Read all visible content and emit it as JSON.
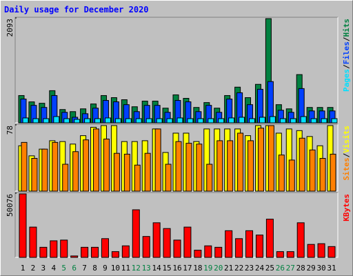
{
  "title": "Daily usage for December 2020",
  "chart_data": [
    {
      "type": "bar",
      "ylim": [
        0,
        2093
      ],
      "yticks": [
        2093
      ],
      "legend_separator": "/",
      "series": [
        {
          "name": "Hits",
          "color": "#008040",
          "values": [
            548,
            421,
            393,
            646,
            267,
            225,
            281,
            379,
            548,
            506,
            464,
            323,
            436,
            436,
            295,
            562,
            492,
            309,
            407,
            295,
            548,
            717,
            506,
            773,
            2093,
            365,
            281,
            969,
            309,
            309,
            309
          ]
        },
        {
          "name": "Files",
          "color": "#0040ff",
          "values": [
            478,
            351,
            309,
            548,
            211,
            112,
            183,
            295,
            450,
            422,
            365,
            225,
            351,
            351,
            211,
            450,
            422,
            225,
            351,
            211,
            478,
            604,
            365,
            674,
            829,
            253,
            211,
            688,
            239,
            239,
            239
          ]
        },
        {
          "name": "Pages",
          "color": "#00e0ff",
          "values": [
            98,
            84,
            84,
            126,
            84,
            70,
            84,
            84,
            98,
            84,
            84,
            84,
            84,
            84,
            84,
            98,
            84,
            84,
            84,
            84,
            98,
            112,
            84,
            112,
            126,
            84,
            84,
            126,
            84,
            84,
            84
          ]
        }
      ]
    },
    {
      "type": "bar",
      "ylim": [
        0,
        78
      ],
      "yticks": [
        78
      ],
      "legend_separator": "/",
      "series": [
        {
          "name": "Visits",
          "color": "#ffff00",
          "values": [
            54,
            42,
            50,
            60,
            59,
            56,
            66,
            76,
            78,
            78,
            59,
            59,
            60,
            74,
            46,
            69,
            69,
            59,
            74,
            74,
            74,
            74,
            66,
            78,
            78,
            69,
            74,
            72,
            65,
            54,
            78
          ]
        },
        {
          "name": "Sites",
          "color": "#ff8000",
          "values": [
            58,
            39,
            50,
            58,
            32,
            47,
            61,
            74,
            62,
            45,
            44,
            31,
            45,
            74,
            32,
            59,
            57,
            56,
            32,
            60,
            60,
            69,
            60,
            75,
            78,
            43,
            37,
            63,
            49,
            39,
            44
          ]
        }
      ]
    },
    {
      "type": "bar",
      "ylim": [
        0,
        50076
      ],
      "yticks": [
        50076
      ],
      "categories": [
        "1",
        "2",
        "3",
        "4",
        "5",
        "6",
        "7",
        "8",
        "9",
        "10",
        "11",
        "12",
        "13",
        "14",
        "15",
        "16",
        "17",
        "18",
        "19",
        "20",
        "21",
        "22",
        "23",
        "24",
        "25",
        "26",
        "27",
        "28",
        "29",
        "30",
        "31"
      ],
      "weekend_days": [
        "5",
        "6",
        "12",
        "13",
        "19",
        "20",
        "26",
        "27"
      ],
      "weekend_color": "#008040",
      "series": [
        {
          "name": "KBytes",
          "color": "#ff0000",
          "values": [
            50076,
            23900,
            7966,
            13088,
            13657,
            1138,
            7966,
            7966,
            14795,
            4552,
            9105,
            37557,
            16502,
            27314,
            22762,
            13657,
            23900,
            5690,
            9105,
            7966,
            21054,
            14795,
            21054,
            17640,
            30159,
            4552,
            4552,
            27314,
            10243,
            10812,
            8536
          ]
        }
      ]
    }
  ]
}
